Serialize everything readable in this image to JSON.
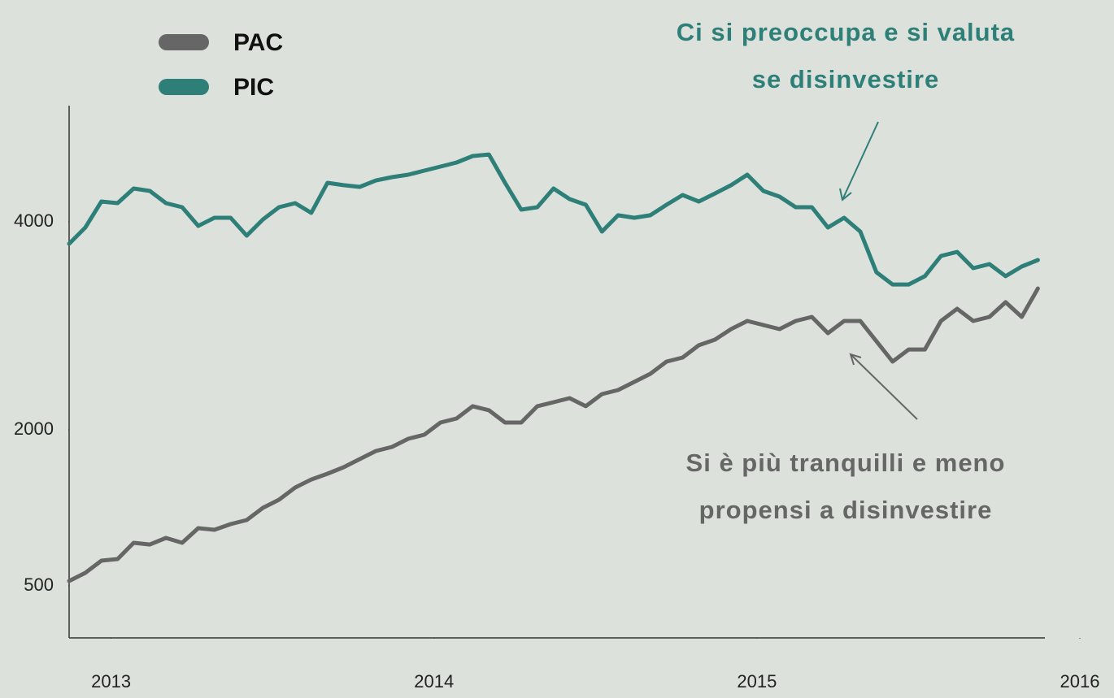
{
  "chart_data": {
    "type": "line",
    "x": [
      2012.87,
      2012.92,
      2012.97,
      2013.02,
      2013.07,
      2013.12,
      2013.17,
      2013.22,
      2013.27,
      2013.32,
      2013.37,
      2013.42,
      2013.47,
      2013.52,
      2013.57,
      2013.62,
      2013.67,
      2013.72,
      2013.77,
      2013.82,
      2013.87,
      2013.92,
      2013.97,
      2014.02,
      2014.07,
      2014.12,
      2014.17,
      2014.22,
      2014.27,
      2014.32,
      2014.37,
      2014.42,
      2014.47,
      2014.52,
      2014.57,
      2014.62,
      2014.67,
      2014.72,
      2014.77,
      2014.82,
      2014.87,
      2014.92,
      2014.97,
      2015.02,
      2015.07,
      2015.12,
      2015.17,
      2015.22,
      2015.27,
      2015.32,
      2015.37,
      2015.42,
      2015.47,
      2015.52,
      2015.57,
      2015.62,
      2015.67,
      2015.72,
      2015.77,
      2015.82,
      2015.87
    ],
    "series": [
      {
        "name": "PAC",
        "color": "#666666",
        "values": [
          547,
          625,
          742,
          758,
          914,
          898,
          961,
          914,
          1055,
          1039,
          1094,
          1133,
          1250,
          1328,
          1445,
          1523,
          1578,
          1641,
          1719,
          1797,
          1836,
          1914,
          1953,
          2070,
          2109,
          2227,
          2188,
          2070,
          2070,
          2227,
          2266,
          2305,
          2227,
          2344,
          2383,
          2461,
          2539,
          2656,
          2695,
          2813,
          2867,
          2969,
          3047,
          3008,
          2969,
          3047,
          3086,
          2930,
          3047,
          3047,
          2852,
          2656,
          2773,
          2773,
          3047,
          3164,
          3047,
          3086,
          3227,
          3086,
          3359
        ]
      },
      {
        "name": "PIC",
        "color": "#2e7f78",
        "values": [
          3789,
          3945,
          4195,
          4180,
          4320,
          4297,
          4180,
          4141,
          3961,
          4039,
          4039,
          3867,
          4023,
          4141,
          4180,
          4086,
          4375,
          4352,
          4336,
          4398,
          4430,
          4453,
          4492,
          4531,
          4570,
          4633,
          4648,
          4375,
          4117,
          4141,
          4320,
          4219,
          4164,
          3906,
          4063,
          4039,
          4063,
          4164,
          4258,
          4195,
          4273,
          4352,
          4453,
          4297,
          4242,
          4141,
          4141,
          3945,
          4039,
          3906,
          3516,
          3398,
          3398,
          3477,
          3672,
          3711,
          3555,
          3594,
          3477,
          3570,
          3633
        ]
      }
    ],
    "xlim": [
      2012.87,
      2016
    ],
    "xticks": [
      2013,
      2014,
      2015,
      2016
    ],
    "ylim": [
      0,
      5000
    ],
    "yticks": [
      500,
      2000,
      4000
    ],
    "legend": "top-left",
    "annotations": [
      {
        "lines": [
          "Ci si preoccupa e si valuta",
          "se disinvestire"
        ],
        "color": "#2e7f78"
      },
      {
        "lines": [
          "Si è più tranquilli e meno",
          "propensi a disinvestire"
        ],
        "color": "#666666"
      }
    ]
  }
}
